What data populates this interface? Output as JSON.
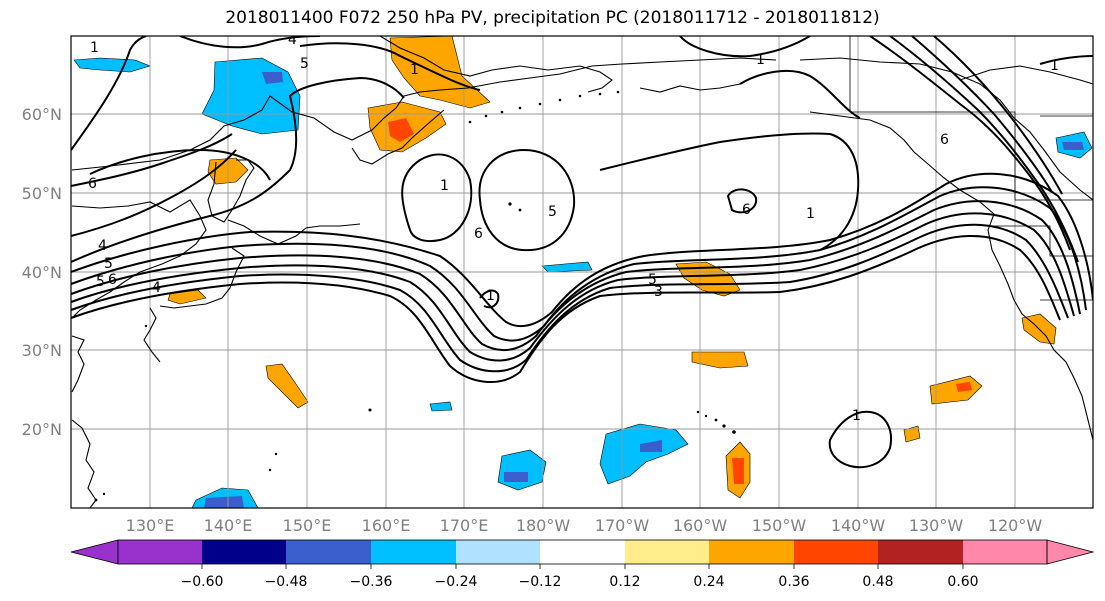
{
  "title": "2018011400 F072 250 hPa PV, precipitation PC (2018011712 - 2018011812)",
  "lon_labels": [
    "130°E",
    "140°E",
    "150°E",
    "160°E",
    "170°E",
    "180°W",
    "170°W",
    "160°W",
    "150°W",
    "140°W",
    "130°W",
    "120°W"
  ],
  "lat_labels": [
    "60°N",
    "50°N",
    "40°N",
    "30°N",
    "20°N"
  ],
  "contour_labels": [
    "1",
    "4",
    "5",
    "1",
    "1",
    "6",
    "1",
    "1",
    "5",
    "6",
    "1",
    "5",
    "6",
    "4",
    "5",
    "4",
    "6",
    "5",
    "3",
    "1",
    "6",
    "1"
  ],
  "colorbar": {
    "ticks": [
      "−0.60",
      "−0.48",
      "−0.36",
      "−0.24",
      "−0.12",
      "0.12",
      "0.24",
      "0.36",
      "0.48",
      "0.60"
    ],
    "colors": [
      "#9932cc",
      "#00008b",
      "#3a5fcd",
      "#00bfff",
      "#b0e2ff",
      "#ffffff",
      "#ffec8b",
      "#ffa500",
      "#ff4500",
      "#b22222",
      "#ff88aa"
    ]
  }
}
